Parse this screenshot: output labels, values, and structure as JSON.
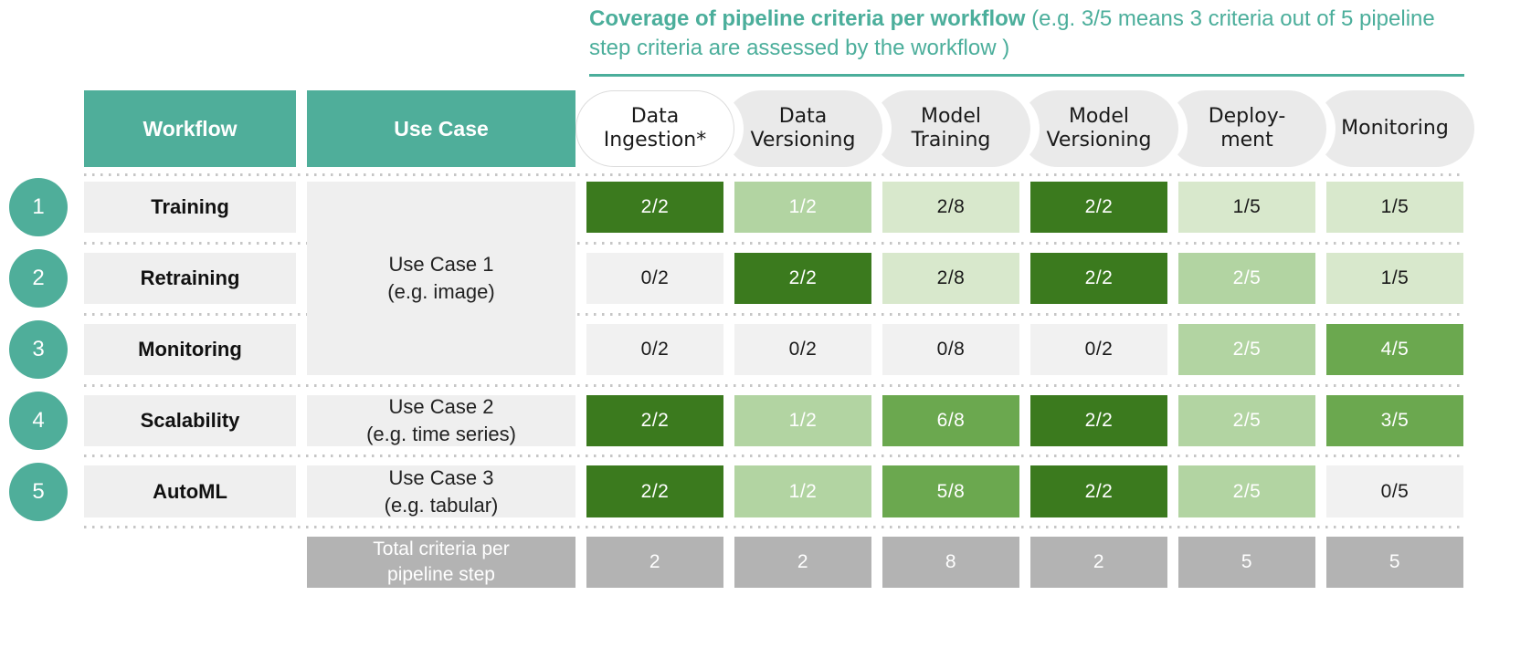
{
  "palette": {
    "teal": "#4FAE9A",
    "title_teal": "#4BAE9B",
    "header_pill_gray": "#EAEAEA",
    "header_pill_highlight": "#FFFFFF",
    "row_gray": "#EFEFEF",
    "levels": {
      "full": {
        "bg": "#3B7A1E",
        "text": "#FFFFFF"
      },
      "high": {
        "bg": "#6BA84F",
        "text": "#FFFFFF"
      },
      "mid": {
        "bg": "#B2D4A2",
        "text": "#FFFFFF"
      },
      "low": {
        "bg": "#D8E8CC",
        "text": "#1A1A1A"
      },
      "zero": {
        "bg": "#F1F1F1",
        "text": "#1A1A1A"
      },
      "total": {
        "bg": "#B3B3B3",
        "text": "#FFFFFF"
      }
    }
  },
  "ui": {
    "title": {
      "bold": "Coverage of pipeline criteria per workflow",
      "rest": " (e.g. 3/5 means 3 criteria out of 5 pipeline step criteria are assessed by the workflow )"
    },
    "col_headers": {
      "workflow": "Workflow",
      "use_case": "Use Case"
    },
    "steps": [
      {
        "label": "Data\nIngestion*"
      },
      {
        "label": "Data\nVersioning"
      },
      {
        "label": "Model\nTraining"
      },
      {
        "label": "Model\nVersioning"
      },
      {
        "label": "Deploy-\nment"
      },
      {
        "label": "Monitoring"
      }
    ],
    "use_cases": [
      {
        "label": "Use Case 1\n(e.g. image)"
      },
      {
        "label": "Use Case 2\n(e.g. time series)"
      },
      {
        "label": "Use Case 3\n(e.g. tabular)"
      }
    ],
    "rows": [
      {
        "num": "1",
        "workflow": "Training",
        "cells": [
          {
            "value": "2/2",
            "level": "full"
          },
          {
            "value": "1/2",
            "level": "mid"
          },
          {
            "value": "2/8",
            "level": "low"
          },
          {
            "value": "2/2",
            "level": "full"
          },
          {
            "value": "1/5",
            "level": "low"
          },
          {
            "value": "1/5",
            "level": "low"
          }
        ]
      },
      {
        "num": "2",
        "workflow": "Retraining",
        "cells": [
          {
            "value": "0/2",
            "level": "zero"
          },
          {
            "value": "2/2",
            "level": "full"
          },
          {
            "value": "2/8",
            "level": "low"
          },
          {
            "value": "2/2",
            "level": "full"
          },
          {
            "value": "2/5",
            "level": "mid"
          },
          {
            "value": "1/5",
            "level": "low"
          }
        ]
      },
      {
        "num": "3",
        "workflow": "Monitoring",
        "cells": [
          {
            "value": "0/2",
            "level": "zero"
          },
          {
            "value": "0/2",
            "level": "zero"
          },
          {
            "value": "0/8",
            "level": "zero"
          },
          {
            "value": "0/2",
            "level": "zero"
          },
          {
            "value": "2/5",
            "level": "mid"
          },
          {
            "value": "4/5",
            "level": "high"
          }
        ]
      },
      {
        "num": "4",
        "workflow": "Scalability",
        "cells": [
          {
            "value": "2/2",
            "level": "full"
          },
          {
            "value": "1/2",
            "level": "mid"
          },
          {
            "value": "6/8",
            "level": "high"
          },
          {
            "value": "2/2",
            "level": "full"
          },
          {
            "value": "2/5",
            "level": "mid"
          },
          {
            "value": "3/5",
            "level": "high"
          }
        ]
      },
      {
        "num": "5",
        "workflow": "AutoML",
        "cells": [
          {
            "value": "2/2",
            "level": "full"
          },
          {
            "value": "1/2",
            "level": "mid"
          },
          {
            "value": "5/8",
            "level": "high"
          },
          {
            "value": "2/2",
            "level": "full"
          },
          {
            "value": "2/5",
            "level": "mid"
          },
          {
            "value": "0/5",
            "level": "zero"
          }
        ]
      }
    ],
    "total": {
      "label": "Total criteria per\npipeline step",
      "level": "total",
      "values": [
        {
          "value": "2"
        },
        {
          "value": "2"
        },
        {
          "value": "8"
        },
        {
          "value": "2"
        },
        {
          "value": "5"
        },
        {
          "value": "5"
        }
      ]
    }
  },
  "chart_data": {
    "type": "heatmap",
    "title": "Coverage of pipeline criteria per workflow",
    "subtitle": "(e.g. 3/5 means 3 criteria out of 5 pipeline step criteria are assessed by the workflow )",
    "columns": [
      "Data Ingestion*",
      "Data Versioning",
      "Model Training",
      "Model Versioning",
      "Deployment",
      "Monitoring"
    ],
    "rows": [
      "Training",
      "Retraining",
      "Monitoring",
      "Scalability",
      "AutoML"
    ],
    "row_use_cases": [
      "Use Case 1 (e.g. image)",
      "Use Case 1 (e.g. image)",
      "Use Case 1 (e.g. image)",
      "Use Case 2 (e.g. time series)",
      "Use Case 3 (e.g. tabular)"
    ],
    "values_assessed": [
      [
        2,
        1,
        2,
        2,
        1,
        1
      ],
      [
        0,
        2,
        2,
        2,
        2,
        1
      ],
      [
        0,
        0,
        0,
        0,
        2,
        4
      ],
      [
        2,
        1,
        6,
        2,
        2,
        3
      ],
      [
        2,
        1,
        5,
        2,
        2,
        0
      ]
    ],
    "values_out_of": [
      [
        2,
        2,
        8,
        2,
        5,
        5
      ],
      [
        2,
        2,
        8,
        2,
        5,
        5
      ],
      [
        2,
        2,
        8,
        2,
        5,
        5
      ],
      [
        2,
        2,
        8,
        2,
        5,
        5
      ],
      [
        2,
        2,
        8,
        2,
        5,
        5
      ]
    ],
    "totals_per_step": [
      2,
      2,
      8,
      2,
      5,
      5
    ],
    "legend_position": "none",
    "grid": false
  }
}
